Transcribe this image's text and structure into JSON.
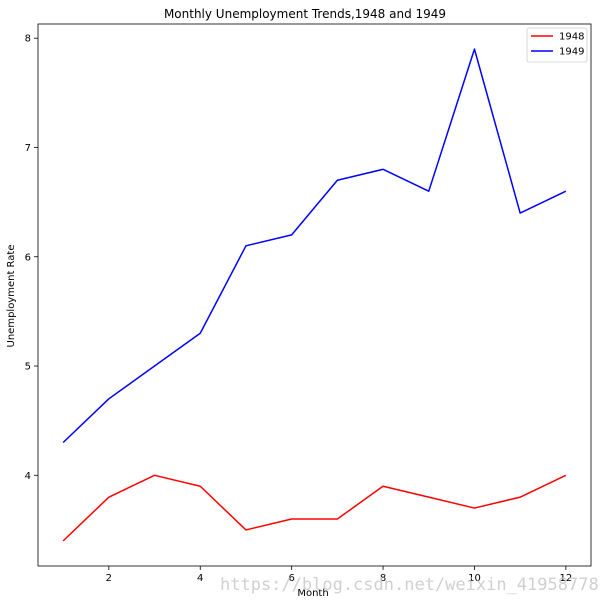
{
  "chart_data": {
    "type": "line",
    "title": "Monthly Unemployment Trends,1948 and 1949",
    "xlabel": "Month",
    "ylabel": "Unemployment Rate",
    "x": [
      1,
      2,
      3,
      4,
      5,
      6,
      7,
      8,
      9,
      10,
      11,
      12
    ],
    "xlim": [
      0.45,
      12.55
    ],
    "ylim": [
      3.17,
      8.13
    ],
    "xticks": [
      2,
      4,
      6,
      8,
      10,
      12
    ],
    "yticks": [
      4,
      5,
      6,
      7,
      8
    ],
    "xtick_labels": [
      "2",
      "4",
      "6",
      "8",
      "10",
      "12"
    ],
    "ytick_labels": [
      "4",
      "5",
      "6",
      "7",
      "8"
    ],
    "grid": false,
    "legend_position": "top-right",
    "series": [
      {
        "name": "1948",
        "color": "#ff0000",
        "values": [
          3.4,
          3.8,
          4.0,
          3.9,
          3.5,
          3.6,
          3.6,
          3.9,
          3.8,
          3.7,
          3.8,
          4.0
        ]
      },
      {
        "name": "1949",
        "color": "#0000ff",
        "values": [
          4.3,
          4.7,
          5.0,
          5.3,
          6.1,
          6.2,
          6.7,
          6.8,
          6.6,
          7.9,
          6.4,
          6.6
        ]
      }
    ],
    "watermark": "https://blog.csdn.net/weixin_41958778"
  }
}
